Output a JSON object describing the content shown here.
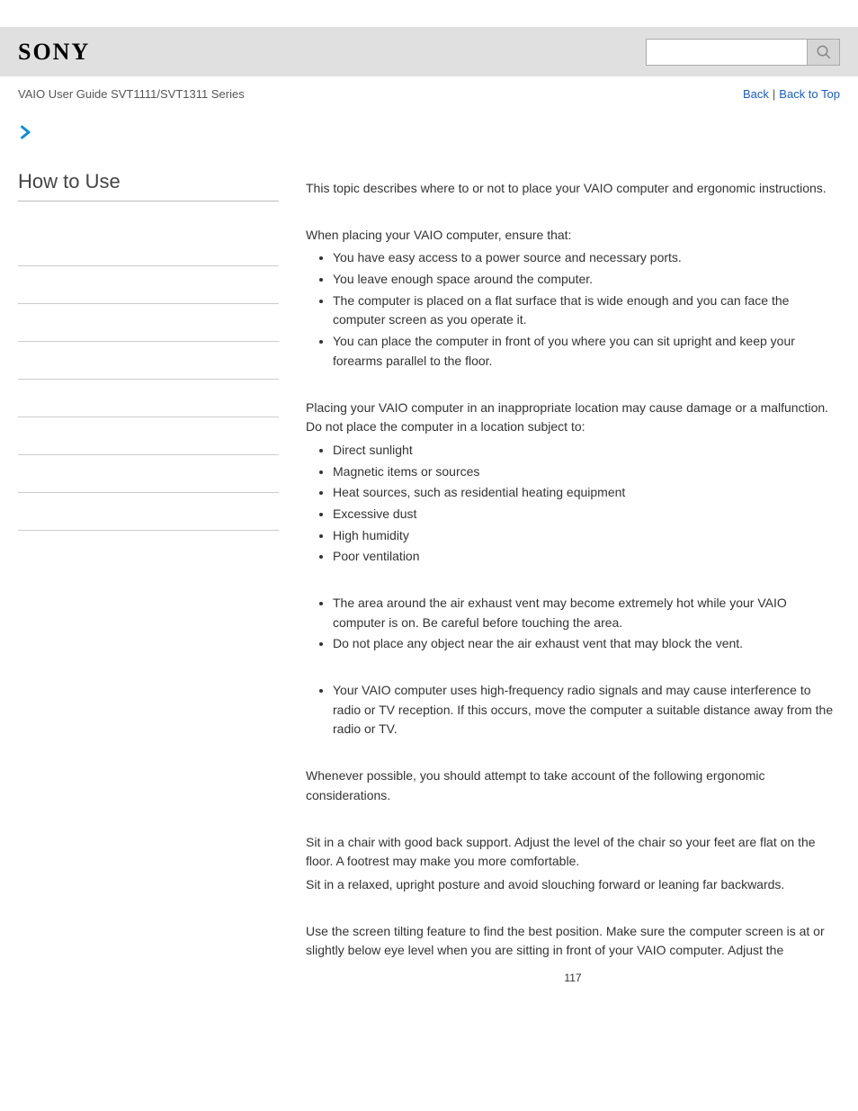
{
  "header": {
    "logo": "SONY",
    "search_placeholder": ""
  },
  "subhead": {
    "guide": "VAIO User Guide SVT1111/SVT1311 Series",
    "back": "Back",
    "back_to_top": "Back to Top"
  },
  "sidebar": {
    "title": "How to Use",
    "item_count": 8
  },
  "content": {
    "intro": "This topic describes where to or not to place your VAIO computer and ergonomic instructions.",
    "place_intro": "When placing your VAIO computer, ensure that:",
    "place_list": [
      "You have easy access to a power source and necessary ports.",
      "You leave enough space around the computer.",
      "The computer is placed on a flat surface that is wide enough and you can face the computer screen as you operate it.",
      "You can place the computer in front of you where you can sit upright and keep your forearms parallel to the floor."
    ],
    "avoid_intro": "Placing your VAIO computer in an inappropriate location may cause damage or a malfunction. Do not place the computer in a location subject to:",
    "avoid_list": [
      "Direct sunlight",
      "Magnetic items or sources",
      "Heat sources, such as residential heating equipment",
      "Excessive dust",
      "High humidity",
      "Poor ventilation"
    ],
    "vent_list": [
      "The area around the air exhaust vent may become extremely hot while your VAIO computer is on. Be careful before touching the area.",
      "Do not place any object near the air exhaust vent that may block the vent."
    ],
    "radio_list": [
      "Your VAIO computer uses high-frequency radio signals and may cause interference to radio or TV reception. If this occurs, move the computer a suitable distance away from the radio or TV."
    ],
    "ergo_intro": "Whenever possible, you should attempt to take account of the following ergonomic considerations.",
    "chair1": "Sit in a chair with good back support. Adjust the level of the chair so your feet are flat on the floor. A footrest may make you more comfortable.",
    "chair2": "Sit in a relaxed, upright posture and avoid slouching forward or leaning far backwards.",
    "screen": "Use the screen tilting feature to find the best position. Make sure the computer screen is at or slightly below eye level when you are sitting in front of your VAIO computer. Adjust the"
  },
  "page_number": "117",
  "colors": {
    "header_bg": "#e0e0e0",
    "link": "#1a5cc8",
    "text": "#333333",
    "border": "#cccccc",
    "arrow": "#0a8fd8"
  }
}
